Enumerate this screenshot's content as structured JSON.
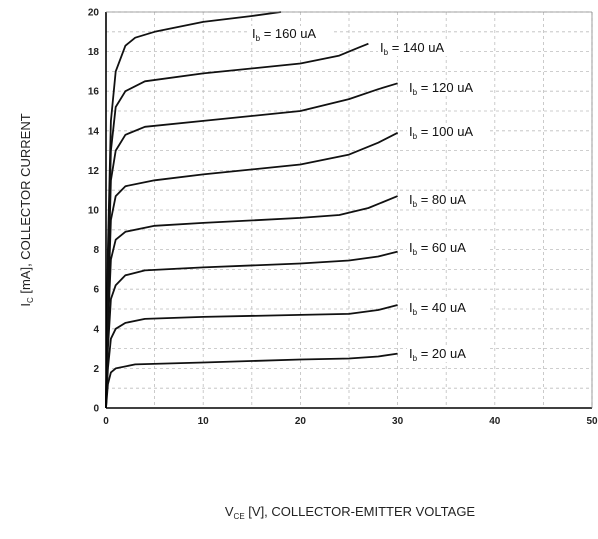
{
  "chart_data": {
    "type": "line",
    "xlabel": "V",
    "xlabel_sub": "CE",
    "xlabel_rest": " [V], COLLECTOR-EMITTER VOLTAGE",
    "ylabel": "I",
    "ylabel_sub": "C",
    "ylabel_rest": " [mA], COLLECTOR CURRENT",
    "xlim": [
      0,
      50
    ],
    "ylim": [
      0,
      20
    ],
    "xticks": [
      0,
      10,
      20,
      30,
      40,
      50
    ],
    "yticks": [
      0,
      2,
      4,
      6,
      8,
      10,
      12,
      14,
      16,
      18,
      20
    ],
    "grid": true,
    "series": [
      {
        "name": "I",
        "name_sub": "b",
        "name_rest": " = 20 uA",
        "points": [
          [
            0,
            0
          ],
          [
            0.2,
            1.2
          ],
          [
            0.5,
            1.8
          ],
          [
            1,
            2.0
          ],
          [
            3,
            2.2
          ],
          [
            10,
            2.3
          ],
          [
            20,
            2.45
          ],
          [
            25,
            2.5
          ],
          [
            28,
            2.6
          ],
          [
            30,
            2.75
          ]
        ]
      },
      {
        "name": "I",
        "name_sub": "b",
        "name_rest": " = 40 uA",
        "points": [
          [
            0,
            0
          ],
          [
            0.2,
            2.0
          ],
          [
            0.5,
            3.5
          ],
          [
            1,
            4.0
          ],
          [
            2,
            4.3
          ],
          [
            4,
            4.5
          ],
          [
            10,
            4.6
          ],
          [
            20,
            4.7
          ],
          [
            25,
            4.75
          ],
          [
            28,
            4.95
          ],
          [
            30,
            5.2
          ]
        ]
      },
      {
        "name": "I",
        "name_sub": "b",
        "name_rest": " = 60 uA",
        "points": [
          [
            0,
            0
          ],
          [
            0.2,
            3.0
          ],
          [
            0.5,
            5.5
          ],
          [
            1,
            6.2
          ],
          [
            2,
            6.7
          ],
          [
            4,
            6.95
          ],
          [
            10,
            7.1
          ],
          [
            20,
            7.3
          ],
          [
            25,
            7.45
          ],
          [
            28,
            7.65
          ],
          [
            30,
            7.9
          ]
        ]
      },
      {
        "name": "I",
        "name_sub": "b",
        "name_rest": " = 80 uA",
        "points": [
          [
            0,
            0
          ],
          [
            0.2,
            4.0
          ],
          [
            0.5,
            7.5
          ],
          [
            1,
            8.5
          ],
          [
            2,
            8.9
          ],
          [
            5,
            9.2
          ],
          [
            10,
            9.35
          ],
          [
            20,
            9.6
          ],
          [
            24,
            9.75
          ],
          [
            27,
            10.1
          ],
          [
            30,
            10.7
          ]
        ]
      },
      {
        "name": "I",
        "name_sub": "b",
        "name_rest": " = 100 uA",
        "points": [
          [
            0,
            0
          ],
          [
            0.2,
            5.0
          ],
          [
            0.5,
            9.5
          ],
          [
            1,
            10.7
          ],
          [
            2,
            11.2
          ],
          [
            5,
            11.5
          ],
          [
            10,
            11.8
          ],
          [
            20,
            12.3
          ],
          [
            25,
            12.8
          ],
          [
            28,
            13.4
          ],
          [
            30,
            13.9
          ]
        ]
      },
      {
        "name": "I",
        "name_sub": "b",
        "name_rest": " = 120 uA",
        "points": [
          [
            0,
            0
          ],
          [
            0.2,
            6.0
          ],
          [
            0.5,
            11.5
          ],
          [
            1,
            13.0
          ],
          [
            2,
            13.8
          ],
          [
            4,
            14.2
          ],
          [
            10,
            14.5
          ],
          [
            20,
            15.0
          ],
          [
            25,
            15.6
          ],
          [
            28,
            16.1
          ],
          [
            30,
            16.4
          ]
        ]
      },
      {
        "name": "I",
        "name_sub": "b",
        "name_rest": " = 140 uA",
        "points": [
          [
            0,
            0
          ],
          [
            0.2,
            7.0
          ],
          [
            0.5,
            13.0
          ],
          [
            1,
            15.2
          ],
          [
            2,
            16.0
          ],
          [
            4,
            16.5
          ],
          [
            10,
            16.9
          ],
          [
            20,
            17.4
          ],
          [
            24,
            17.8
          ],
          [
            26,
            18.2
          ],
          [
            27,
            18.4
          ]
        ]
      },
      {
        "name": "I",
        "name_sub": "b",
        "name_rest": " = 160 uA",
        "points": [
          [
            0,
            0
          ],
          [
            0.2,
            8.0
          ],
          [
            0.5,
            14.5
          ],
          [
            1,
            17.0
          ],
          [
            2,
            18.3
          ],
          [
            3,
            18.7
          ],
          [
            5,
            19.0
          ],
          [
            10,
            19.5
          ],
          [
            15,
            19.8
          ],
          [
            18,
            20.0
          ]
        ]
      }
    ]
  }
}
